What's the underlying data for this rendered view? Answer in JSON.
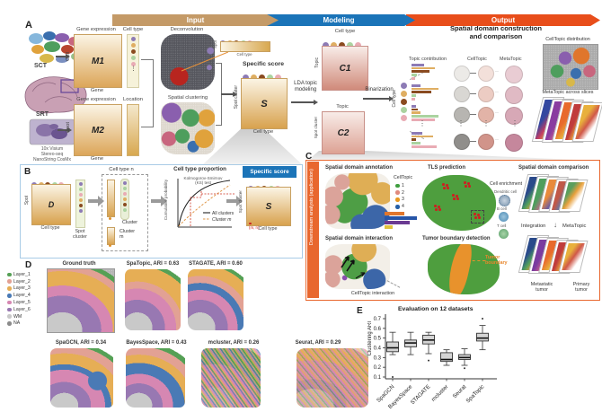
{
  "panelA": {
    "label": "A",
    "header": {
      "input": "Input",
      "modeling": "Modeling",
      "output": "Output"
    },
    "left": {
      "sct": "SCT",
      "srt": "SRT",
      "platform1": "10x Visium",
      "platform2": "Stereo-seq",
      "platform3": "NanoString CosMx"
    },
    "m1": {
      "top": "Gene expression",
      "col": "Cell type",
      "side": "Cell",
      "bottom": "Gene",
      "label": "M1"
    },
    "m2": {
      "top": "Gene expression",
      "col": "Location",
      "side": "Spot",
      "bottom": "Gene",
      "label": "M2"
    },
    "deconvolution": {
      "title": "Deconvolution",
      "bar_side": "Spot",
      "bar_bottom": "Cell type"
    },
    "spatial_clustering": {
      "title": "Spatial clustering"
    },
    "s": {
      "title": "Specific score",
      "label": "S",
      "side": "Spot cluster",
      "bottom": "Cell type"
    },
    "lda": "LDA topic\nmodeling",
    "c1": {
      "top": "Cell type",
      "side": "Topic",
      "label": "C1"
    },
    "c2": {
      "top": "Topic",
      "side": "Spot cluster",
      "label": "C2"
    },
    "binarization": "Binarization",
    "celltype_axis": "Cell type",
    "columns": {
      "topic_contribution": "Topic contribution",
      "celltopic": "CellTopic",
      "metatopic": "MetaTopic"
    },
    "output_title": "Spatial domain construction\nand comparison",
    "celltopic_distribution": "CellTopic distribution",
    "metatopic_slices": "MetaTopic across slices",
    "topic_rows": [
      {
        "bars": [
          [
            0,
            14
          ],
          [
            1,
            26
          ],
          [
            2,
            20
          ],
          [
            3,
            6
          ],
          [
            4,
            4
          ]
        ]
      },
      {
        "bars": [
          [
            0,
            10
          ],
          [
            1,
            30
          ],
          [
            2,
            22
          ],
          [
            3,
            5
          ],
          [
            4,
            4
          ]
        ]
      },
      {
        "bars": [
          [
            0,
            5
          ],
          [
            2,
            7
          ],
          [
            1,
            10
          ],
          [
            3,
            30
          ],
          [
            4,
            26
          ]
        ]
      },
      {
        "bars": [
          [
            0,
            12
          ],
          [
            1,
            24
          ],
          [
            2,
            5
          ],
          [
            3,
            10
          ],
          [
            4,
            28
          ]
        ]
      }
    ]
  },
  "panelB": {
    "label": "B",
    "d": {
      "label": "D",
      "side": "Spot",
      "bottom": "Cell type",
      "col": "Spot\ncluster"
    },
    "cluster_box": {
      "title": "Cell type n",
      "cluster": "Cluster",
      "cluster_m": "Cluster\nm"
    },
    "ks": {
      "title": "Cell type proportion",
      "test": "Kolmogorov-Smirnov\n(KS) test",
      "ylabel": "Cumulative probability",
      "legend_all": "All clusters",
      "legend_m": "Cluster m"
    },
    "s": {
      "banner": "Specific score",
      "label": "S",
      "side": "Spot cluster",
      "bottom": "Cell type",
      "cell": "(m, n)"
    }
  },
  "panelC": {
    "label": "C",
    "sidebar": "Downstream analysis (application)",
    "annotation": {
      "title": "Spatial domain annotation",
      "legend_title": "CellTopic",
      "items": [
        {
          "label": "1",
          "color": "#3f9e3f"
        },
        {
          "label": "2",
          "color": "#e08a7d"
        },
        {
          "label": "3",
          "color": "#e8991f"
        },
        {
          "label": "4",
          "color": "#2660a8"
        }
      ]
    },
    "tls": {
      "title": "TLS prediction",
      "enrichment": "Cell enrichment",
      "cells": [
        {
          "label": "Dendritic cell"
        },
        {
          "label": "B cell"
        },
        {
          "label": "T cell"
        }
      ]
    },
    "comparison": {
      "title": "Spatial domain comparison",
      "integration": "Integration",
      "metatopic": "MetaTopic",
      "metastatic": "Metastatic\ntumor",
      "primary": "Primary\ntumor"
    },
    "interaction": {
      "title": "Spatial domain interaction",
      "caption": "CellTopic interaction"
    },
    "tumor": {
      "title": "Tumor boundary detection",
      "boundary": "Tumor\nboundary"
    }
  },
  "panelD": {
    "label": "D",
    "legend": [
      {
        "label": "Layer_1",
        "color": "#55a055"
      },
      {
        "label": "Layer_2",
        "color": "#e2a194"
      },
      {
        "label": "Layer_3",
        "color": "#e6ae55"
      },
      {
        "label": "Layer_4",
        "color": "#4a7ab5"
      },
      {
        "label": "Layer_5",
        "color": "#d687b2"
      },
      {
        "label": "Layer_6",
        "color": "#9878b2"
      },
      {
        "label": "WM",
        "color": "#c9c9c9"
      },
      {
        "label": "NA",
        "color": "#8b8b8b"
      }
    ],
    "maps": [
      {
        "title": "Ground truth"
      },
      {
        "title": "SpaTopic, ARI = 0.63"
      },
      {
        "title": "STAGATE, ARI = 0.60"
      },
      {
        "title": "SpaGCN, ARI = 0.34"
      },
      {
        "title": "BayesSpace, ARI = 0.43"
      },
      {
        "title": "mcluster, ARI = 0.26"
      },
      {
        "title": "Seurat, ARI = 0.29"
      }
    ]
  },
  "panelE": {
    "label": "E"
  },
  "chart_data": {
    "type": "boxplot",
    "title": "Evaluation on 12 datasets",
    "ylabel": "Clustering ARI",
    "ylim": [
      0.1,
      0.7
    ],
    "yticks": [
      0.1,
      0.2,
      0.3,
      0.4,
      0.5,
      0.6,
      0.7
    ],
    "categories": [
      "SpaGCN",
      "BayesSpace",
      "STAGATE",
      "mcluster",
      "Seurat",
      "SpaTopic"
    ],
    "boxes": [
      {
        "low": 0.33,
        "q1": 0.36,
        "median": 0.4,
        "q3": 0.46,
        "high": 0.56,
        "outliers": [
          0.1
        ]
      },
      {
        "low": 0.33,
        "q1": 0.41,
        "median": 0.45,
        "q3": 0.48,
        "high": 0.56,
        "outliers": []
      },
      {
        "low": 0.34,
        "q1": 0.44,
        "median": 0.48,
        "q3": 0.53,
        "high": 0.56,
        "outliers": [
          0.27
        ]
      },
      {
        "low": 0.22,
        "q1": 0.26,
        "median": 0.28,
        "q3": 0.35,
        "high": 0.38,
        "outliers": []
      },
      {
        "low": 0.22,
        "q1": 0.28,
        "median": 0.3,
        "q3": 0.33,
        "high": 0.39,
        "outliers": [
          0.19
        ]
      },
      {
        "low": 0.38,
        "q1": 0.47,
        "median": 0.5,
        "q3": 0.55,
        "high": 0.63,
        "outliers": [
          0.7
        ]
      }
    ]
  },
  "colors": {
    "input_arrow": "#c49a67",
    "modeling_arrow": "#1b74b8",
    "output_arrow": "#e84e1b",
    "panelB_border": "#a9cbe6",
    "panelC_border": "#e8672e",
    "banner_blue": "#1b74b8",
    "cell_palette": [
      "#8d7bb5",
      "#dfae62",
      "#8a4b20",
      "#abd3a0",
      "#e9abb4"
    ]
  }
}
